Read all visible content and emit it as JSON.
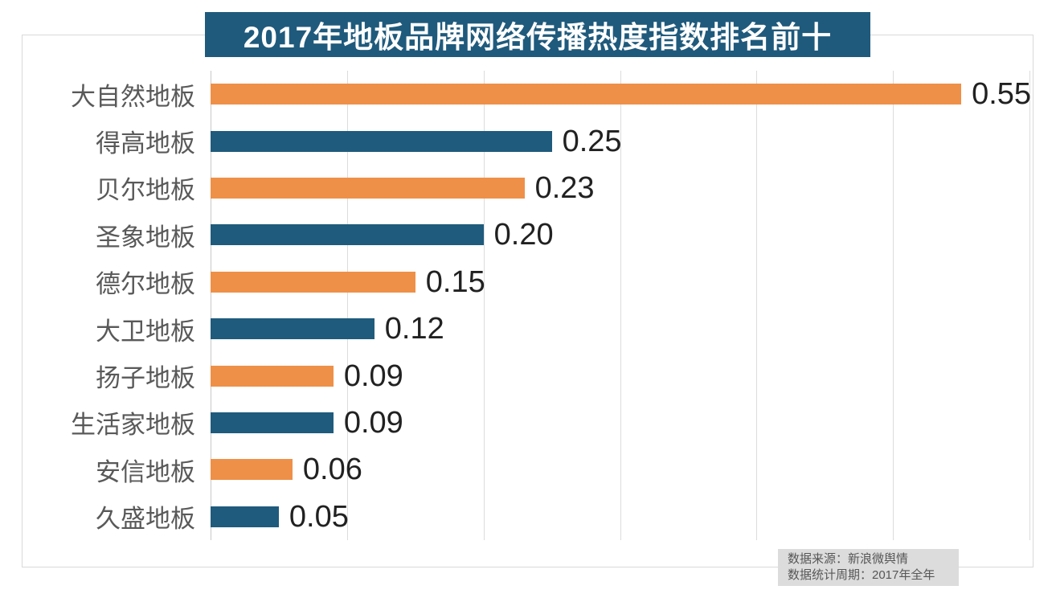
{
  "title": "2017年地板品牌网络传播热度指数排名前十",
  "source_note": {
    "line1": "数据来源：新浪微舆情",
    "line2": "数据统计周期：2017年全年"
  },
  "colors": {
    "orange": "#EE9048",
    "blue": "#1F5B7C",
    "title_bg": "#1F5A7C",
    "grid": "#DCDCDC",
    "frame_border": "#D9D9D9",
    "category_text": "#595959",
    "value_text": "#212121",
    "footer_bg": "#DCDCDC",
    "footer_text": "#575757"
  },
  "chart_data": {
    "type": "bar",
    "orientation": "horizontal",
    "title": "2017年地板品牌网络传播热度指数排名前十",
    "categories": [
      "大自然地板",
      "得高地板",
      "贝尔地板",
      "圣象地板",
      "德尔地板",
      "大卫地板",
      "扬子地板",
      "生活家地板",
      "安信地板",
      "久盛地板"
    ],
    "values": [
      0.55,
      0.25,
      0.23,
      0.2,
      0.15,
      0.12,
      0.09,
      0.09,
      0.06,
      0.05
    ],
    "value_labels": [
      "0.55",
      "0.25",
      "0.23",
      "0.20",
      "0.15",
      "0.12",
      "0.09",
      "0.09",
      "0.06",
      "0.05"
    ],
    "xlim": [
      0,
      0.6
    ],
    "grid_step": 0.1,
    "gridline_count": 7,
    "grid_on": true,
    "legend": "none",
    "bar_color_pattern": [
      "orange",
      "blue"
    ]
  }
}
